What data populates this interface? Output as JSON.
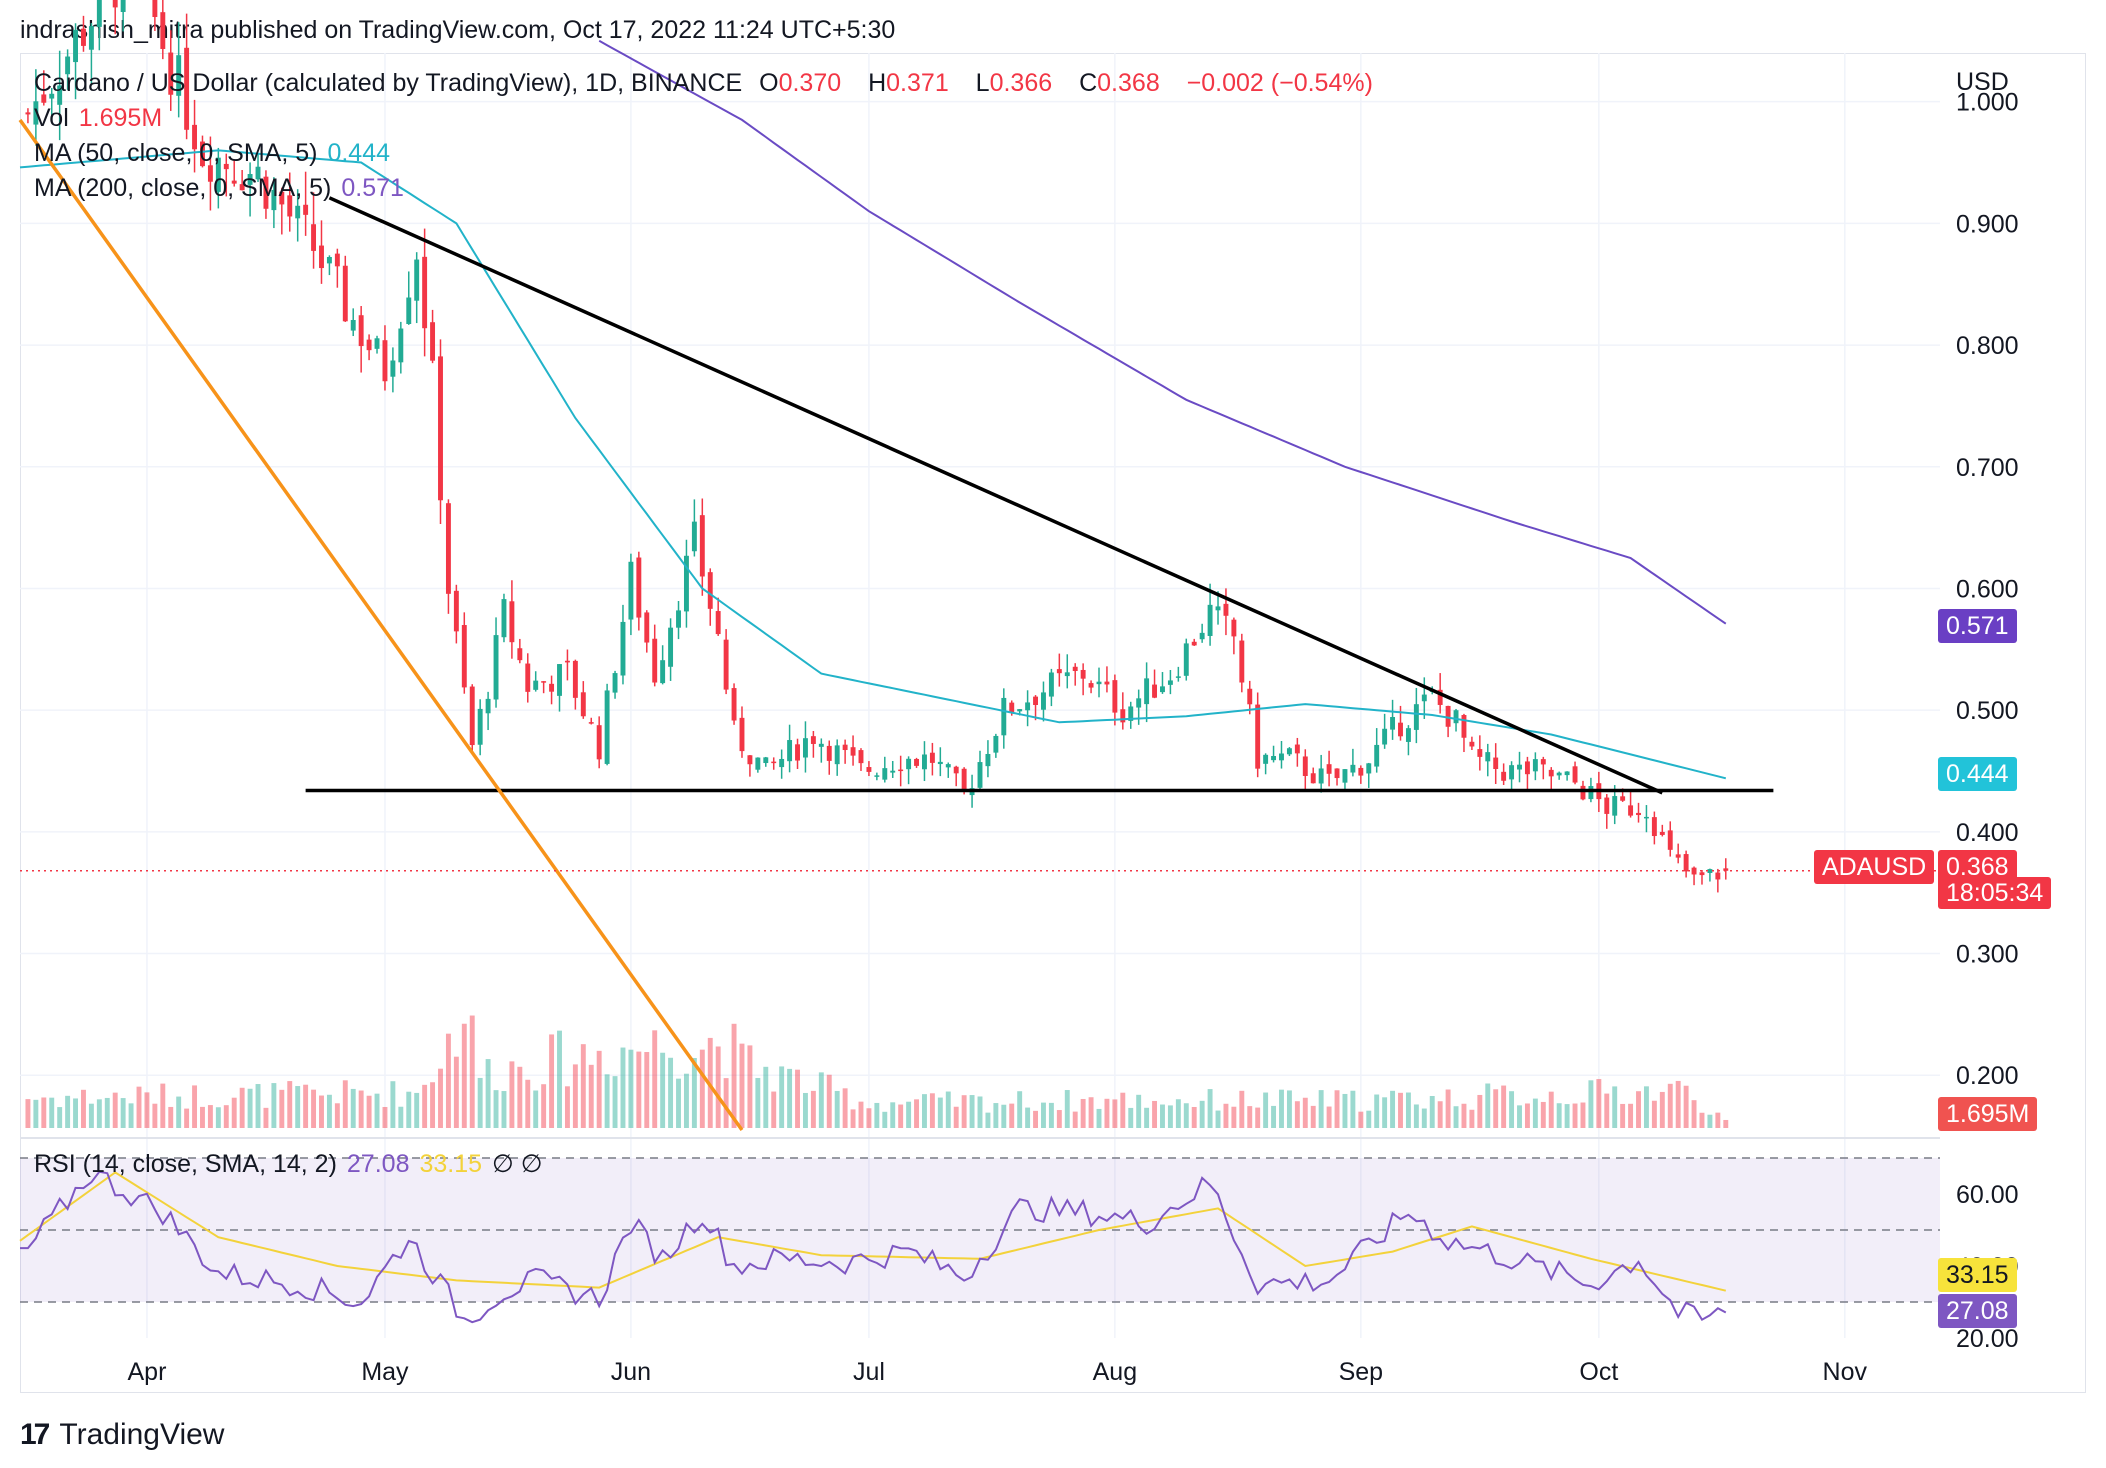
{
  "publish_line": "indrashish_mitra published on TradingView.com, Oct 17, 2022 11:24 UTC+5:30",
  "legend": {
    "title": "Cardano / US Dollar (calculated by TradingView), 1D, BINANCE",
    "o_label": "O",
    "o": "0.370",
    "h_label": "H",
    "h": "0.371",
    "l_label": "L",
    "l": "0.366",
    "c_label": "C",
    "c": "0.368",
    "change": "−0.002 (−0.54%)",
    "vol_label": "Vol",
    "vol": "1.695M",
    "ma50_label": "MA (50, close, 0, SMA, 5)",
    "ma50": "0.444",
    "ma200_label": "MA (200, close, 0, SMA, 5)",
    "ma200": "0.571",
    "rsi_label": "RSI (14, close, SMA, 14, 2)",
    "rsi": "27.08",
    "rsi_sma": "33.15",
    "rsi_extra": "∅ ∅"
  },
  "badges": {
    "ma200": "0.571",
    "ma50": "0.444",
    "symbol": "ADAUSD",
    "price": "0.368",
    "countdown": "18:05:34",
    "volume": "1.695M",
    "rsi_sma": "33.15",
    "rsi": "27.08"
  },
  "axis_currency": "USD",
  "footer": {
    "brand": "TradingView",
    "logo_text": "17"
  },
  "colors": {
    "up": "#22ab94",
    "down": "#f23645",
    "ma50": "#22b3c9",
    "ma200": "#6a4bc4",
    "rsi": "#7e57c2",
    "rsi_sma": "#f3d23b",
    "trend_black": "#000000",
    "trend_orange": "#f7931a"
  },
  "chart_data": {
    "type": "candlestick",
    "title": "Cardano / US Dollar (calculated by TradingView), 1D, BINANCE",
    "ylabel": "USD",
    "ylim": [
      0.155,
      1.04
    ],
    "y_ticks": [
      "1.000",
      "0.900",
      "0.800",
      "0.700",
      "0.600",
      "0.500",
      "0.400",
      "0.300",
      "0.200"
    ],
    "x_ticks": [
      "Apr",
      "May",
      "Jun",
      "Jul",
      "Aug",
      "Sep",
      "Oct",
      "Nov"
    ],
    "x_range": [
      "2022-03-16",
      "2022-11-13"
    ],
    "price_anchors": [
      {
        "date": "2022-03-17",
        "close": 0.99
      },
      {
        "date": "2022-03-30",
        "close": 1.12
      },
      {
        "date": "2022-04-08",
        "close": 0.96
      },
      {
        "date": "2022-04-15",
        "close": 0.94
      },
      {
        "date": "2022-04-22",
        "close": 0.88
      },
      {
        "date": "2022-04-27",
        "close": 0.82
      },
      {
        "date": "2022-05-01",
        "close": 0.78
      },
      {
        "date": "2022-05-05",
        "close": 0.88
      },
      {
        "date": "2022-05-07",
        "close": 0.77
      },
      {
        "date": "2022-05-09",
        "close": 0.6
      },
      {
        "date": "2022-05-12",
        "close": 0.47
      },
      {
        "date": "2022-05-14",
        "close": 0.52
      },
      {
        "date": "2022-05-16",
        "close": 0.58
      },
      {
        "date": "2022-05-19",
        "close": 0.52
      },
      {
        "date": "2022-05-24",
        "close": 0.53
      },
      {
        "date": "2022-05-28",
        "close": 0.47
      },
      {
        "date": "2022-06-01",
        "close": 0.61
      },
      {
        "date": "2022-06-04",
        "close": 0.53
      },
      {
        "date": "2022-06-09",
        "close": 0.64
      },
      {
        "date": "2022-06-12",
        "close": 0.56
      },
      {
        "date": "2022-06-14",
        "close": 0.48
      },
      {
        "date": "2022-06-18",
        "close": 0.45
      },
      {
        "date": "2022-06-24",
        "close": 0.48
      },
      {
        "date": "2022-06-30",
        "close": 0.45
      },
      {
        "date": "2022-07-05",
        "close": 0.46
      },
      {
        "date": "2022-07-09",
        "close": 0.46
      },
      {
        "date": "2022-07-13",
        "close": 0.43
      },
      {
        "date": "2022-07-18",
        "close": 0.5
      },
      {
        "date": "2022-07-24",
        "close": 0.52
      },
      {
        "date": "2022-07-28",
        "close": 0.53
      },
      {
        "date": "2022-08-02",
        "close": 0.5
      },
      {
        "date": "2022-08-08",
        "close": 0.53
      },
      {
        "date": "2022-08-13",
        "close": 0.58
      },
      {
        "date": "2022-08-16",
        "close": 0.56
      },
      {
        "date": "2022-08-19",
        "close": 0.46
      },
      {
        "date": "2022-08-23",
        "close": 0.46
      },
      {
        "date": "2022-08-28",
        "close": 0.44
      },
      {
        "date": "2022-09-02",
        "close": 0.46
      },
      {
        "date": "2022-09-06",
        "close": 0.49
      },
      {
        "date": "2022-09-10",
        "close": 0.51
      },
      {
        "date": "2022-09-13",
        "close": 0.49
      },
      {
        "date": "2022-09-15",
        "close": 0.46
      },
      {
        "date": "2022-09-19",
        "close": 0.45
      },
      {
        "date": "2022-09-23",
        "close": 0.45
      },
      {
        "date": "2022-09-28",
        "close": 0.44
      },
      {
        "date": "2022-10-02",
        "close": 0.42
      },
      {
        "date": "2022-10-07",
        "close": 0.42
      },
      {
        "date": "2022-10-10",
        "close": 0.38
      },
      {
        "date": "2022-10-13",
        "close": 0.36
      },
      {
        "date": "2022-10-17",
        "close": 0.368
      }
    ],
    "ma50_anchors": [
      {
        "date": "2022-03-16",
        "value": 0.946
      },
      {
        "date": "2022-04-10",
        "value": 0.96
      },
      {
        "date": "2022-04-28",
        "value": 0.95
      },
      {
        "date": "2022-05-10",
        "value": 0.9
      },
      {
        "date": "2022-05-25",
        "value": 0.74
      },
      {
        "date": "2022-06-10",
        "value": 0.6
      },
      {
        "date": "2022-06-25",
        "value": 0.53
      },
      {
        "date": "2022-07-10",
        "value": 0.51
      },
      {
        "date": "2022-07-25",
        "value": 0.49
      },
      {
        "date": "2022-08-10",
        "value": 0.495
      },
      {
        "date": "2022-08-25",
        "value": 0.505
      },
      {
        "date": "2022-09-10",
        "value": 0.496
      },
      {
        "date": "2022-09-25",
        "value": 0.48
      },
      {
        "date": "2022-10-17",
        "value": 0.444
      }
    ],
    "ma200_anchors": [
      {
        "date": "2022-05-28",
        "value": 1.05
      },
      {
        "date": "2022-06-15",
        "value": 0.985
      },
      {
        "date": "2022-07-01",
        "value": 0.91
      },
      {
        "date": "2022-07-20",
        "value": 0.835
      },
      {
        "date": "2022-08-10",
        "value": 0.755
      },
      {
        "date": "2022-08-30",
        "value": 0.7
      },
      {
        "date": "2022-09-20",
        "value": 0.655
      },
      {
        "date": "2022-10-05",
        "value": 0.625
      },
      {
        "date": "2022-10-17",
        "value": 0.571
      }
    ],
    "trendlines": [
      {
        "name": "descending-resistance",
        "points": [
          {
            "date": "2022-04-24",
            "price": 0.921
          },
          {
            "date": "2022-10-09",
            "price": 0.432
          }
        ]
      },
      {
        "name": "horizontal-support",
        "points": [
          {
            "date": "2022-04-21",
            "price": 0.434
          },
          {
            "date": "2022-10-23",
            "price": 0.434
          }
        ]
      },
      {
        "name": "orange-downtrend",
        "points": [
          {
            "date": "2022-03-16",
            "price": 0.985
          },
          {
            "date": "2022-06-15",
            "price": 0.155
          }
        ]
      }
    ],
    "current_price": 0.368,
    "volume": {
      "ylim": [
        0,
        2.6
      ],
      "anchors": [
        {
          "date": "2022-03-16",
          "value": 0.6
        },
        {
          "date": "2022-05-05",
          "value": 0.7
        },
        {
          "date": "2022-05-09",
          "value": 1.7
        },
        {
          "date": "2022-05-11",
          "value": 2.4
        },
        {
          "date": "2022-05-13",
          "value": 1.1
        },
        {
          "date": "2022-06-01",
          "value": 1.6
        },
        {
          "date": "2022-06-13",
          "value": 1.7
        },
        {
          "date": "2022-06-15",
          "value": 1.3
        },
        {
          "date": "2022-07-01",
          "value": 0.5
        },
        {
          "date": "2022-08-01",
          "value": 0.55
        },
        {
          "date": "2022-09-01",
          "value": 0.55
        },
        {
          "date": "2022-10-12",
          "value": 0.75
        },
        {
          "date": "2022-10-17",
          "value": 0.15
        }
      ]
    },
    "rsi": {
      "ylim": [
        20,
        75
      ],
      "y_ticks": [
        "60.00",
        "40.00",
        "20.00"
      ],
      "bands": [
        30,
        50,
        70
      ],
      "anchors": [
        {
          "date": "2022-03-16",
          "value": 42
        },
        {
          "date": "2022-03-25",
          "value": 66
        },
        {
          "date": "2022-04-03",
          "value": 55
        },
        {
          "date": "2022-04-10",
          "value": 38
        },
        {
          "date": "2022-04-20",
          "value": 35
        },
        {
          "date": "2022-04-28",
          "value": 30
        },
        {
          "date": "2022-05-04",
          "value": 48
        },
        {
          "date": "2022-05-08",
          "value": 35
        },
        {
          "date": "2022-05-11",
          "value": 25
        },
        {
          "date": "2022-05-16",
          "value": 33
        },
        {
          "date": "2022-05-20",
          "value": 36
        },
        {
          "date": "2022-05-28",
          "value": 31
        },
        {
          "date": "2022-06-01",
          "value": 52
        },
        {
          "date": "2022-06-05",
          "value": 42
        },
        {
          "date": "2022-06-10",
          "value": 55
        },
        {
          "date": "2022-06-14",
          "value": 40
        },
        {
          "date": "2022-06-20",
          "value": 42
        },
        {
          "date": "2022-06-28",
          "value": 41
        },
        {
          "date": "2022-07-06",
          "value": 44
        },
        {
          "date": "2022-07-13",
          "value": 37
        },
        {
          "date": "2022-07-20",
          "value": 56
        },
        {
          "date": "2022-07-28",
          "value": 55
        },
        {
          "date": "2022-08-05",
          "value": 52
        },
        {
          "date": "2022-08-13",
          "value": 63
        },
        {
          "date": "2022-08-19",
          "value": 35
        },
        {
          "date": "2022-08-28",
          "value": 36
        },
        {
          "date": "2022-09-07",
          "value": 55
        },
        {
          "date": "2022-09-12",
          "value": 47
        },
        {
          "date": "2022-09-20",
          "value": 42
        },
        {
          "date": "2022-09-30",
          "value": 35
        },
        {
          "date": "2022-10-06",
          "value": 42
        },
        {
          "date": "2022-10-11",
          "value": 27
        },
        {
          "date": "2022-10-14",
          "value": 25
        },
        {
          "date": "2022-10-17",
          "value": 27.08
        }
      ],
      "sma_anchors": [
        {
          "date": "2022-03-16",
          "value": 47
        },
        {
          "date": "2022-03-28",
          "value": 66
        },
        {
          "date": "2022-04-10",
          "value": 48
        },
        {
          "date": "2022-04-25",
          "value": 40
        },
        {
          "date": "2022-05-10",
          "value": 36
        },
        {
          "date": "2022-05-28",
          "value": 34
        },
        {
          "date": "2022-06-12",
          "value": 48
        },
        {
          "date": "2022-06-25",
          "value": 43
        },
        {
          "date": "2022-07-15",
          "value": 42
        },
        {
          "date": "2022-07-30",
          "value": 50
        },
        {
          "date": "2022-08-14",
          "value": 56
        },
        {
          "date": "2022-08-25",
          "value": 40
        },
        {
          "date": "2022-09-05",
          "value": 44
        },
        {
          "date": "2022-09-15",
          "value": 51
        },
        {
          "date": "2022-09-30",
          "value": 42
        },
        {
          "date": "2022-10-17",
          "value": 33.15
        }
      ]
    }
  }
}
